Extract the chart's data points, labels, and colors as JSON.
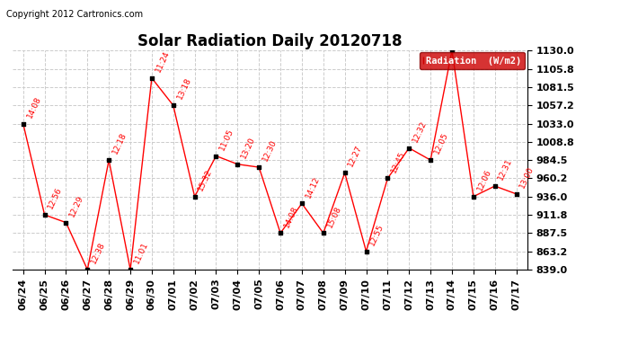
{
  "title": "Solar Radiation Daily 20120718",
  "copyright": "Copyright 2012 Cartronics.com",
  "legend_label": "Radiation  (W/m2)",
  "x_labels": [
    "06/24",
    "06/25",
    "06/26",
    "06/27",
    "06/28",
    "06/29",
    "06/30",
    "07/01",
    "07/02",
    "07/03",
    "07/04",
    "07/05",
    "07/06",
    "07/07",
    "07/08",
    "07/09",
    "07/10",
    "07/11",
    "07/12",
    "07/13",
    "07/14",
    "07/15",
    "07/16",
    "07/17"
  ],
  "y_values": [
    1033.0,
    911.8,
    901.5,
    839.0,
    984.5,
    839.0,
    1093.5,
    1057.2,
    936.0,
    990.0,
    979.0,
    975.0,
    887.5,
    926.8,
    887.5,
    967.5,
    863.2,
    960.2,
    1000.5,
    984.5,
    1130.0,
    936.0,
    950.0,
    939.5
  ],
  "time_labels": [
    "14:08",
    "12:56",
    "12:29",
    "12:38",
    "12:18",
    "11:01",
    "11:24",
    "13:18",
    "15:32",
    "11:05",
    "13:20",
    "12:30",
    "14:08",
    "14:12",
    "15:08",
    "12:27",
    "12:55",
    "12:45",
    "12:32",
    "12:05",
    "",
    "12:06",
    "12:31",
    "13:00"
  ],
  "ylim_min": 839.0,
  "ylim_max": 1130.0,
  "ytick_values": [
    839.0,
    863.2,
    887.5,
    911.8,
    936.0,
    960.2,
    984.5,
    1008.8,
    1033.0,
    1057.2,
    1081.5,
    1105.8,
    1130.0
  ],
  "ytick_labels": [
    "839.0",
    "863.2",
    "887.5",
    "911.8",
    "936.0",
    "960.2",
    "984.5",
    "1008.8",
    "1033.0",
    "1057.2",
    "1081.5",
    "1105.8",
    "1130.0"
  ],
  "line_color": "#ff0000",
  "marker_color": "#000000",
  "grid_color": "#cccccc",
  "bg_color": "#ffffff",
  "title_fontsize": 12,
  "tick_fontsize": 8,
  "annot_fontsize": 6.5,
  "annot_rotation": 65,
  "legend_bg": "#cc0000",
  "legend_text_color": "#ffffff",
  "copyright_fontsize": 7
}
